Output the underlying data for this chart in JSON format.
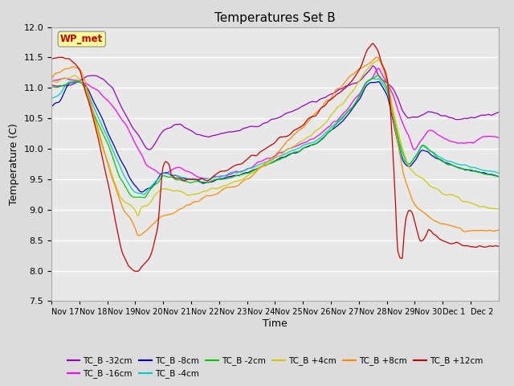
{
  "title": "Temperatures Set B",
  "ylabel": "Temperature (C)",
  "xlabel": "Time",
  "ylim": [
    7.5,
    12.0
  ],
  "yticks": [
    7.5,
    8.0,
    8.5,
    9.0,
    9.5,
    10.0,
    10.5,
    11.0,
    11.5,
    12.0
  ],
  "x_labels": [
    "Nov 17",
    "Nov 18",
    "Nov 19",
    "Nov 20",
    "Nov 21",
    "Nov 22",
    "Nov 23",
    "Nov 24",
    "Nov 25",
    "Nov 26",
    "Nov 27",
    "Nov 28",
    "Nov 29",
    "Nov 30",
    "Dec 1",
    "Dec 2"
  ],
  "series": [
    {
      "label": "TC_B -32cm",
      "color": "#9900cc"
    },
    {
      "label": "TC_B -16cm",
      "color": "#ff00ff"
    },
    {
      "label": "TC_B -8cm",
      "color": "#0000cc"
    },
    {
      "label": "TC_B -4cm",
      "color": "#00cccc"
    },
    {
      "label": "TC_B -2cm",
      "color": "#00cc00"
    },
    {
      "label": "TC_B +4cm",
      "color": "#cccc00"
    },
    {
      "label": "TC_B +8cm",
      "color": "#ff8800"
    },
    {
      "label": "TC_B +12cm",
      "color": "#cc0000"
    }
  ],
  "wp_met_label": "WP_met",
  "wp_met_color": "#cc0000",
  "wp_met_bg": "#ffff99",
  "background_color": "#dcdcdc",
  "plot_bg": "#e8e8e8",
  "grid_color": "#ffffff",
  "n_points": 1440
}
